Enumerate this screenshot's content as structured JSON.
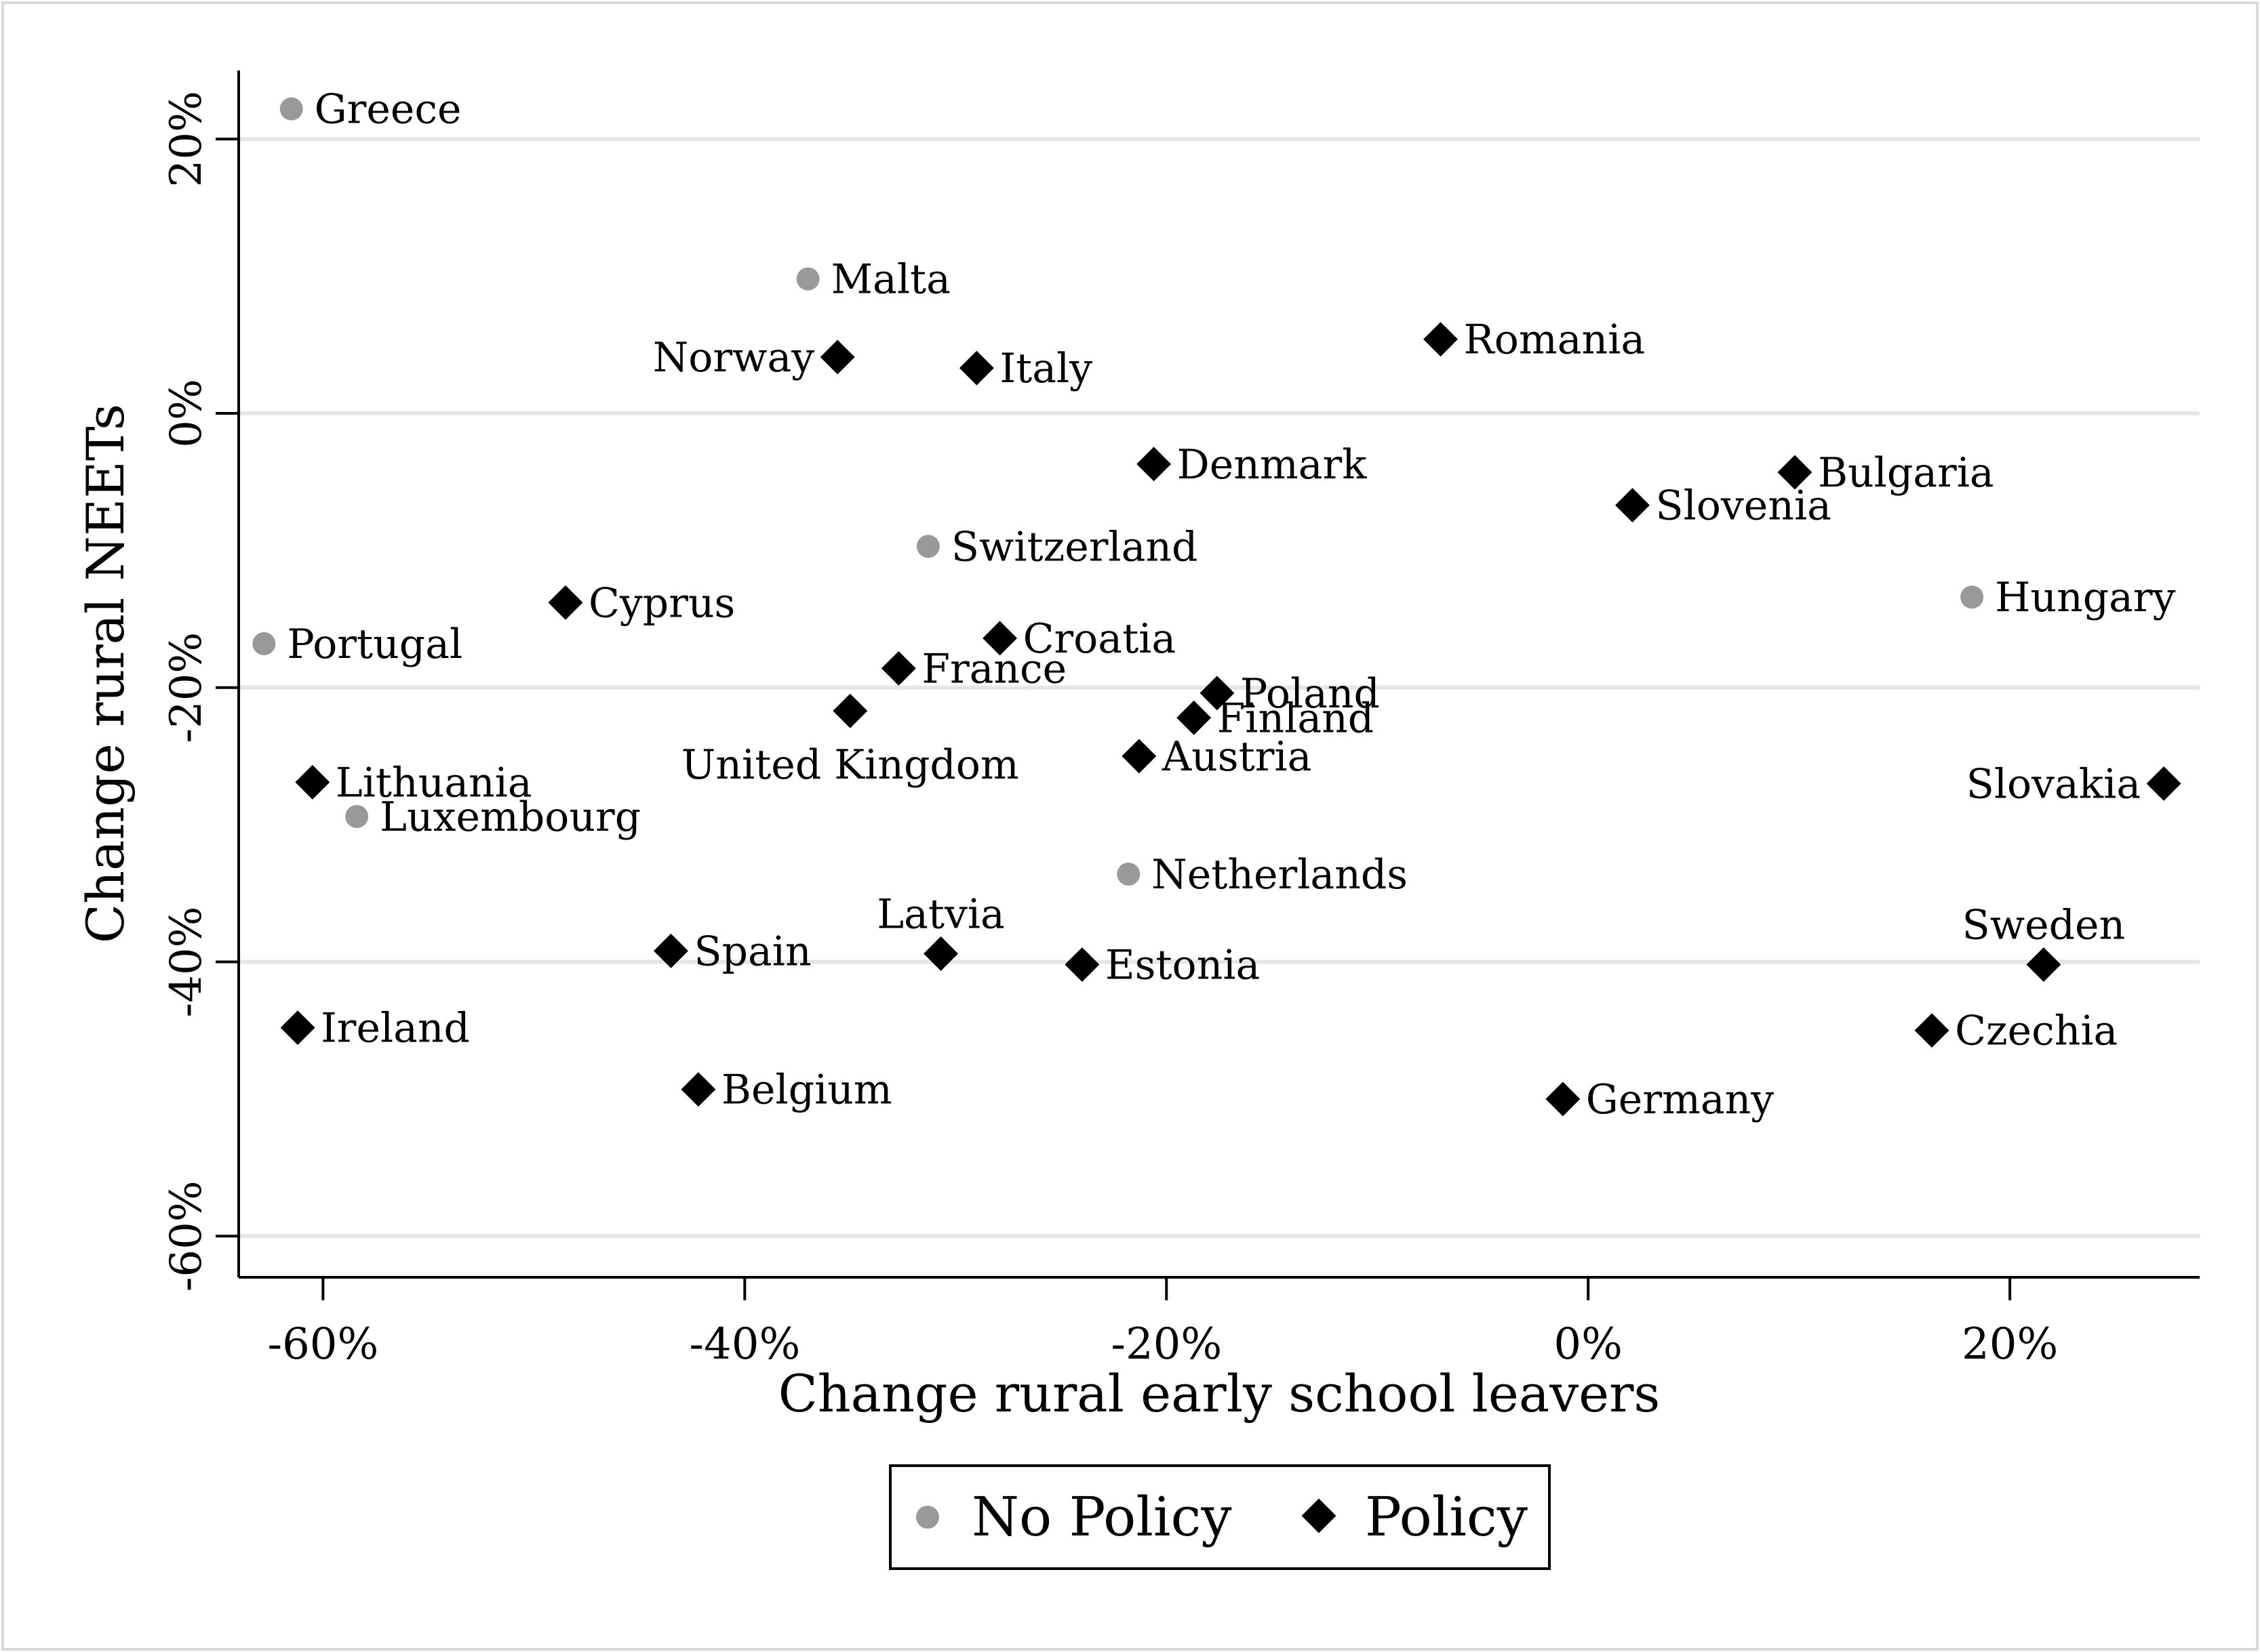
{
  "chart_data": {
    "type": "scatter",
    "title": "",
    "xlabel": "Change rural early school leavers",
    "ylabel": "Change rural NEETs",
    "xlim": [
      -64,
      29
    ],
    "ylim": [
      -63,
      25
    ],
    "x_ticks": [
      -60,
      -40,
      -20,
      0,
      20
    ],
    "y_ticks": [
      -60,
      -40,
      -20,
      0,
      20
    ],
    "x_tick_labels": [
      "-60%",
      "-40%",
      "-20%",
      "0%",
      "20%"
    ],
    "y_tick_labels": [
      "-60%",
      "-40%",
      "-20%",
      "0%",
      "20%"
    ],
    "grid": true,
    "legend_position": "bottom-center",
    "colors": {
      "No Policy": "#999999",
      "Policy": "#000000",
      "grid": "#e6e6e6"
    },
    "series": [
      {
        "name": "No Policy",
        "marker": "circle",
        "points": [
          {
            "label": "Greece",
            "x": -61.5,
            "y": 22.2
          },
          {
            "label": "Malta",
            "x": -37.0,
            "y": 9.8
          },
          {
            "label": "Switzerland",
            "x": -31.3,
            "y": -9.7
          },
          {
            "label": "Portugal",
            "x": -62.8,
            "y": -16.8
          },
          {
            "label": "Luxembourg",
            "x": -58.4,
            "y": -29.4
          },
          {
            "label": "Netherlands",
            "x": -21.8,
            "y": -33.6
          },
          {
            "label": "Hungary",
            "x": 18.2,
            "y": -13.4
          }
        ]
      },
      {
        "name": "Policy",
        "marker": "diamond",
        "points": [
          {
            "label": "Norway",
            "x": -35.6,
            "y": 4.1
          },
          {
            "label": "Italy",
            "x": -29.0,
            "y": 3.3
          },
          {
            "label": "Romania",
            "x": -7.0,
            "y": 5.4
          },
          {
            "label": "Denmark",
            "x": -20.6,
            "y": -3.7
          },
          {
            "label": "Slovenia",
            "x": 2.1,
            "y": -6.7
          },
          {
            "label": "Bulgaria",
            "x": 9.8,
            "y": -4.3
          },
          {
            "label": "Cyprus",
            "x": -48.5,
            "y": -13.8
          },
          {
            "label": "Croatia",
            "x": -27.9,
            "y": -16.4
          },
          {
            "label": "France",
            "x": -32.7,
            "y": -18.6
          },
          {
            "label": "Poland",
            "x": -17.6,
            "y": -20.4
          },
          {
            "label": "Finland",
            "x": -18.7,
            "y": -22.2
          },
          {
            "label": "United Kingdom",
            "x": -35.0,
            "y": -21.7
          },
          {
            "label": "Austria",
            "x": -21.3,
            "y": -25.0
          },
          {
            "label": "Lithuania",
            "x": -60.5,
            "y": -26.9
          },
          {
            "label": "Slovakia",
            "x": 27.3,
            "y": -27.0
          },
          {
            "label": "Spain",
            "x": -43.5,
            "y": -39.2
          },
          {
            "label": "Latvia",
            "x": -30.7,
            "y": -39.4
          },
          {
            "label": "Estonia",
            "x": -24.0,
            "y": -40.2
          },
          {
            "label": "Sweden",
            "x": 21.6,
            "y": -40.2
          },
          {
            "label": "Ireland",
            "x": -61.2,
            "y": -44.8
          },
          {
            "label": "Czechia",
            "x": 16.3,
            "y": -45.0
          },
          {
            "label": "Belgium",
            "x": -42.2,
            "y": -49.3
          },
          {
            "label": "Germany",
            "x": -1.2,
            "y": -50.0
          }
        ]
      }
    ],
    "legend": {
      "entries": [
        "No Policy",
        "Policy"
      ]
    }
  }
}
